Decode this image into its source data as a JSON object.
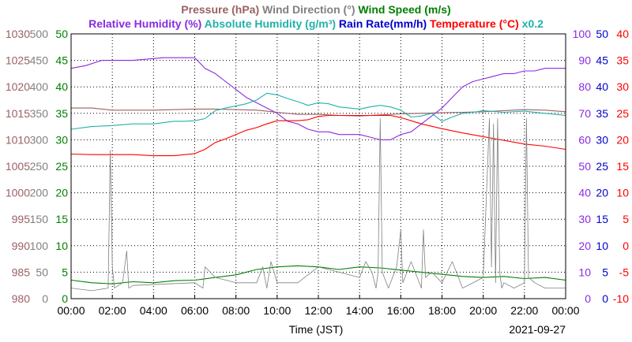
{
  "chart_data": {
    "type": "line",
    "date_label": "2021-09-27",
    "x_axis": {
      "label": "Time (JST)",
      "ticks": [
        "00:00",
        "02:00",
        "04:00",
        "06:00",
        "08:00",
        "10:00",
        "12:00",
        "14:00",
        "16:00",
        "18:00",
        "20:00",
        "22:00",
        "00:00"
      ],
      "range_hours": [
        0,
        24
      ]
    },
    "legend": {
      "row1": [
        {
          "text": "Pressure (hPa)",
          "color": "#9b6063"
        },
        {
          "text": "Wind Direction (°)",
          "color": "#808080"
        },
        {
          "text": "Wind Speed (m/s)",
          "color": "#008000"
        }
      ],
      "row2": [
        {
          "text": "Relative Humidity (%)",
          "color": "#8a2be2"
        },
        {
          "text": "Absolute Humidity (g/m³)",
          "color": "#20b2aa"
        },
        {
          "text": "Rain Rate(mm/h)",
          "color": "#0000cd"
        },
        {
          "text": "Temperature (°C)",
          "color": "#ff0000"
        },
        {
          "text": "x0.2",
          "color": "#20b2aa"
        }
      ]
    },
    "axes": {
      "pressure": {
        "color": "#9b6063",
        "range": [
          980,
          1030
        ],
        "ticks": [
          "980",
          "985",
          "990",
          "995",
          "1000",
          "1005",
          "1010",
          "1015",
          "1020",
          "1025",
          "1030"
        ]
      },
      "wind_direction": {
        "color": "#808080",
        "range": [
          0,
          500
        ],
        "ticks": [
          "0",
          "50",
          "100",
          "150",
          "200",
          "250",
          "300",
          "350",
          "400",
          "450",
          "500"
        ]
      },
      "wind_speed": {
        "color": "#008000",
        "range": [
          0,
          50
        ],
        "ticks": [
          "0",
          "5",
          "10",
          "15",
          "20",
          "25",
          "30",
          "35",
          "40",
          "45",
          "50"
        ]
      },
      "relative_humidity": {
        "color": "#8a2be2",
        "range": [
          0,
          100
        ],
        "ticks": [
          "0",
          "10",
          "20",
          "30",
          "40",
          "50",
          "60",
          "70",
          "80",
          "90",
          "100"
        ]
      },
      "rain_rate": {
        "color": "#0000cd",
        "range": [
          0,
          50
        ],
        "ticks": [
          "0",
          "5",
          "10",
          "15",
          "20",
          "25",
          "30",
          "35",
          "40",
          "45",
          "50"
        ]
      },
      "temperature": {
        "color": "#ff0000",
        "range": [
          -10,
          40
        ],
        "ticks": [
          "-10",
          "-5",
          "0",
          "5",
          "10",
          "15",
          "20",
          "25",
          "30",
          "35",
          "40"
        ]
      }
    },
    "grid": true,
    "series": [
      {
        "name": "Pressure (hPa)",
        "axis": "pressure",
        "color": "#9b6063",
        "x": [
          0,
          1,
          2,
          3,
          4,
          5,
          6,
          7,
          8,
          9,
          9.5,
          10,
          11,
          12,
          13,
          14,
          15,
          16,
          17,
          18,
          19,
          20,
          21,
          22,
          23,
          24
        ],
        "y": [
          1016,
          1016,
          1015.6,
          1015.6,
          1015.6,
          1015.7,
          1015.8,
          1015.8,
          1015.7,
          1015.6,
          1015.4,
          1015.2,
          1014.8,
          1014.8,
          1014.6,
          1014.5,
          1014.7,
          1014.9,
          1015.0,
          1015.1,
          1015.2,
          1015.3,
          1015.5,
          1015.7,
          1015.6,
          1015.3
        ]
      },
      {
        "name": "Relative Humidity (%)",
        "axis": "relative_humidity",
        "color": "#8a2be2",
        "x": [
          0,
          0.7,
          1.5,
          3,
          4.5,
          5.5,
          6,
          6.5,
          7,
          7.5,
          8,
          8.5,
          9,
          9.5,
          10,
          10.5,
          11,
          11.5,
          12,
          12.5,
          13,
          13.5,
          14,
          14.5,
          15,
          15.5,
          16,
          16.5,
          17,
          17.5,
          18,
          18.5,
          19,
          19.5,
          20,
          20.5,
          21,
          21.5,
          22,
          22.5,
          23,
          24
        ],
        "y": [
          87,
          88,
          90,
          90,
          91,
          91,
          91,
          87,
          85,
          82,
          79,
          76,
          74,
          72,
          70,
          67,
          66,
          64,
          63,
          63,
          62,
          62,
          62,
          61,
          60,
          60,
          62,
          63,
          66,
          69,
          72,
          76,
          80,
          82,
          83,
          84,
          85,
          85,
          86,
          86,
          87,
          87
        ]
      },
      {
        "name": "Absolute Humidity (g/m³)",
        "axis": "temperature",
        "color": "#20b2aa",
        "x": [
          0,
          1,
          2,
          3,
          4,
          5,
          5.5,
          6,
          6.5,
          7,
          7.5,
          8,
          8.5,
          9,
          9.5,
          10,
          10.5,
          11,
          11.5,
          12,
          12.5,
          13,
          13.5,
          14,
          14.5,
          15,
          15.5,
          16,
          16.5,
          17,
          17.5,
          18,
          18.5,
          19,
          19.5,
          20,
          21,
          22,
          23,
          24
        ],
        "y": [
          22,
          22.5,
          22.7,
          23,
          23,
          23.5,
          23.5,
          23.6,
          24,
          25.5,
          26,
          26.4,
          26.8,
          27.5,
          28.8,
          28.5,
          27.8,
          27.2,
          26.5,
          27,
          26.8,
          26.2,
          26,
          25.8,
          26.2,
          26.5,
          26.2,
          25.6,
          24.3,
          24.5,
          25,
          23.5,
          24.3,
          25,
          25.2,
          25.5,
          25.2,
          25.4,
          25.0,
          24.6
        ]
      },
      {
        "name": "Temperature (°C)",
        "axis": "temperature",
        "color": "#ff0000",
        "x": [
          0,
          1,
          2,
          3,
          4,
          5,
          6,
          6.5,
          7,
          7.5,
          8,
          8.5,
          9,
          9.5,
          10,
          10.5,
          11,
          11.5,
          12,
          12.5,
          13,
          13.5,
          14,
          14.5,
          15,
          15.5,
          16,
          16.5,
          17,
          18,
          19,
          20,
          21,
          22,
          23,
          24
        ],
        "y": [
          17.3,
          17.2,
          17.2,
          17.2,
          17,
          17,
          17.4,
          18.2,
          19.5,
          20.2,
          21,
          21.8,
          22.3,
          23,
          23.6,
          23.6,
          23.6,
          23.8,
          24.4,
          24.6,
          24.6,
          24.6,
          24.6,
          24.6,
          24.6,
          24.6,
          24.2,
          23.6,
          23,
          22.1,
          21.3,
          20.6,
          19.9,
          19.2,
          18.8,
          18.2
        ]
      },
      {
        "name": "Wind Speed (m/s)",
        "axis": "wind_speed",
        "color": "#008000",
        "x": [
          0,
          1,
          2,
          3,
          4,
          5,
          6,
          7,
          8,
          9,
          10,
          11,
          12,
          13,
          14,
          15,
          16,
          17,
          18,
          19,
          20,
          21,
          22,
          23,
          24
        ],
        "y": [
          3.5,
          3,
          2.8,
          3.2,
          3,
          3.4,
          3.5,
          4,
          4.5,
          5.5,
          6,
          6.2,
          6,
          5.5,
          6,
          5.8,
          5.4,
          5,
          4.6,
          4.2,
          4,
          4.2,
          3.8,
          4,
          3.5
        ]
      },
      {
        "name": "Wind Direction (°)",
        "axis": "wind_direction",
        "color": "#808080",
        "x": [
          0,
          1,
          1.8,
          1.9,
          2.0,
          2.1,
          2.5,
          2.7,
          2.8,
          3,
          6,
          6.4,
          6.5,
          7,
          8,
          9,
          9.3,
          9.5,
          9.7,
          10,
          11,
          12,
          13,
          14,
          14.3,
          14.6,
          14.8,
          14.9,
          15.0,
          15.1,
          15.4,
          15.8,
          16.0,
          16.1,
          16.5,
          17,
          17.1,
          17.2,
          17.5,
          18,
          18.5,
          19,
          20,
          20.3,
          20.4,
          20.5,
          20.6,
          20.7,
          20.8,
          20.9,
          21,
          21.5,
          22,
          22.1,
          22.2,
          22.5,
          23,
          24
        ],
        "y": [
          20,
          15,
          20,
          280,
          60,
          20,
          30,
          90,
          20,
          25,
          30,
          20,
          60,
          40,
          30,
          30,
          60,
          20,
          70,
          30,
          30,
          60,
          50,
          40,
          70,
          50,
          20,
          50,
          340,
          50,
          20,
          60,
          130,
          30,
          70,
          20,
          130,
          40,
          50,
          30,
          70,
          20,
          40,
          340,
          60,
          330,
          30,
          340,
          50,
          20,
          30,
          20,
          30,
          340,
          40,
          30,
          20,
          20
        ]
      },
      {
        "name": "Rain Rate(mm/h)",
        "axis": "rain_rate",
        "color": "#0000cd",
        "x": [
          0,
          24
        ],
        "y": [
          0,
          0
        ]
      }
    ]
  }
}
